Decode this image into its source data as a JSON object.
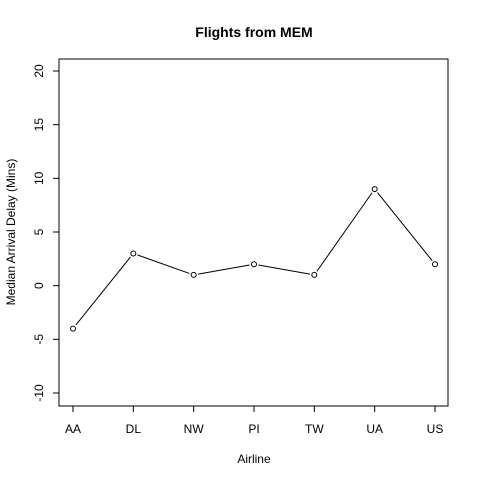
{
  "chart_data": {
    "type": "line",
    "title": "Flights from MEM",
    "xlabel": "Airline",
    "ylabel": "Median Arrival Delay (Mins)",
    "categories": [
      "AA",
      "DL",
      "NW",
      "PI",
      "TW",
      "UA",
      "US"
    ],
    "series": [
      {
        "values": [
          -4,
          3,
          1,
          2,
          1,
          9,
          2
        ]
      }
    ],
    "ylim": [
      -11,
      21
    ],
    "yticks": [
      -10,
      -5,
      0,
      5,
      10,
      15,
      20
    ],
    "ytick_labels": [
      "-10",
      "-5",
      "0",
      "5",
      "10",
      "15",
      "20"
    ],
    "grid": false,
    "legend": "none",
    "marker": "open-circle",
    "line_color": "#000000"
  }
}
